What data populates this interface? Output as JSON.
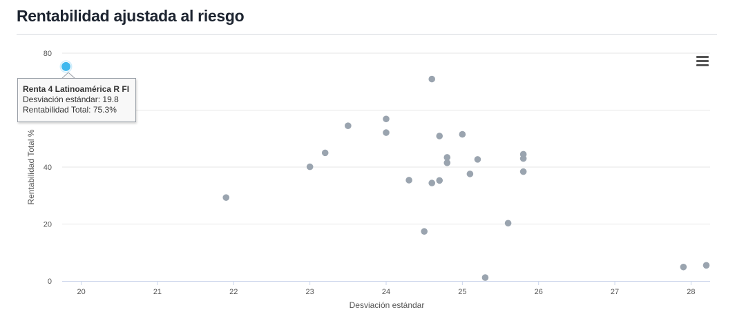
{
  "header": {
    "title": "Rentabilidad ajustada al riesgo"
  },
  "chart_data": {
    "type": "scatter",
    "title": "",
    "xlabel": "Desviación estándar",
    "ylabel": "Rentabilidad Total %",
    "xlim": [
      19.75,
      28.25
    ],
    "ylim": [
      0,
      80
    ],
    "xticks": [
      20,
      21,
      22,
      23,
      24,
      25,
      26,
      27,
      28
    ],
    "yticks": [
      0,
      20,
      40,
      80
    ],
    "grid": true,
    "legend": "none",
    "point_color": "#9aa4af",
    "highlight_color": "#3fb8ee",
    "points": [
      {
        "x": 19.8,
        "y": 75.3,
        "highlighted": true
      },
      {
        "x": 21.9,
        "y": 29.3
      },
      {
        "x": 23.0,
        "y": 40.1
      },
      {
        "x": 23.2,
        "y": 45.0
      },
      {
        "x": 23.5,
        "y": 54.5
      },
      {
        "x": 24.0,
        "y": 56.9
      },
      {
        "x": 24.0,
        "y": 52.1
      },
      {
        "x": 24.3,
        "y": 35.4
      },
      {
        "x": 24.5,
        "y": 17.4
      },
      {
        "x": 24.6,
        "y": 70.9
      },
      {
        "x": 24.6,
        "y": 34.4
      },
      {
        "x": 24.7,
        "y": 50.9
      },
      {
        "x": 24.7,
        "y": 35.3
      },
      {
        "x": 24.8,
        "y": 43.4
      },
      {
        "x": 24.8,
        "y": 41.5
      },
      {
        "x": 25.0,
        "y": 51.5
      },
      {
        "x": 25.1,
        "y": 37.6
      },
      {
        "x": 25.2,
        "y": 42.7
      },
      {
        "x": 25.3,
        "y": 1.2
      },
      {
        "x": 25.6,
        "y": 20.3
      },
      {
        "x": 25.8,
        "y": 44.5
      },
      {
        "x": 25.8,
        "y": 43.0
      },
      {
        "x": 25.8,
        "y": 38.4
      },
      {
        "x": 27.9,
        "y": 4.9
      },
      {
        "x": 28.2,
        "y": 5.5
      }
    ]
  },
  "tooltip": {
    "name": "Renta 4 Latinoamérica R FI",
    "line1": "Desviación estándar: 19.8",
    "line2": "Rentabilidad Total: 75.3%"
  },
  "menu": {
    "icon": "hamburger-menu-icon"
  }
}
